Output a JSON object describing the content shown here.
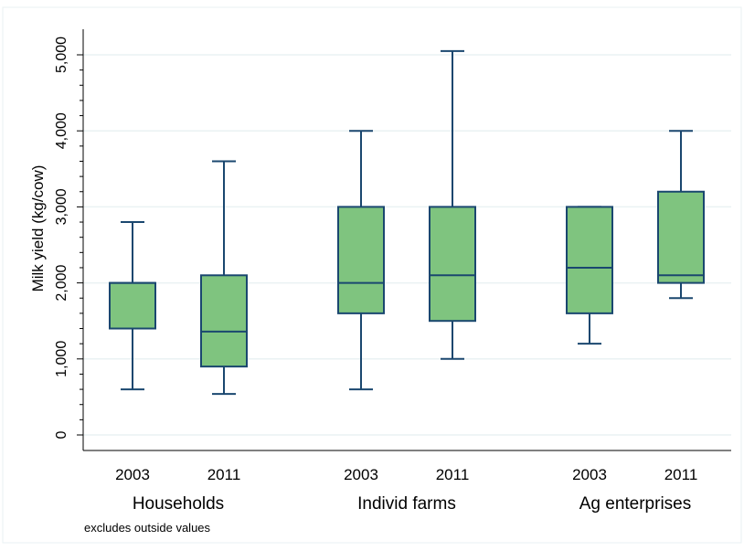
{
  "chart_data": {
    "type": "box",
    "ylabel": "Milk yield (kg/cow)",
    "ylim": [
      0,
      5000
    ],
    "yticks": [
      {
        "value": 0,
        "label": "0"
      },
      {
        "value": 1000,
        "label": "1,000"
      },
      {
        "value": 2000,
        "label": "2,000"
      },
      {
        "value": 3000,
        "label": "3,000"
      },
      {
        "value": 4000,
        "label": "4,000"
      },
      {
        "value": 5000,
        "label": "5,000"
      }
    ],
    "grid": true,
    "note": "excludes outside values",
    "groups": [
      {
        "label": "Households",
        "boxes": [
          {
            "label": "2003",
            "min": 600,
            "q1": 1400,
            "median": 2000,
            "q3": 2000,
            "max": 2800
          },
          {
            "label": "2011",
            "min": 540,
            "q1": 900,
            "median": 1360,
            "q3": 2100,
            "max": 3600
          }
        ]
      },
      {
        "label": "Individ farms",
        "boxes": [
          {
            "label": "2003",
            "min": 600,
            "q1": 1600,
            "median": 2000,
            "q3": 3000,
            "max": 4000
          },
          {
            "label": "2011",
            "min": 1000,
            "q1": 1500,
            "median": 2100,
            "q3": 3000,
            "max": 5050
          }
        ]
      },
      {
        "label": "Ag enterprises",
        "boxes": [
          {
            "label": "2003",
            "min": 1200,
            "q1": 1600,
            "median": 2200,
            "q3": 3000,
            "max": 3000
          },
          {
            "label": "2011",
            "min": 1800,
            "q1": 2000,
            "median": 2100,
            "q3": 3200,
            "max": 4000
          }
        ]
      }
    ],
    "colors": {
      "box_fill": "#7fc47f",
      "box_stroke": "#1a476f",
      "grid": "#eaf2f3",
      "axis": "#000000"
    }
  }
}
